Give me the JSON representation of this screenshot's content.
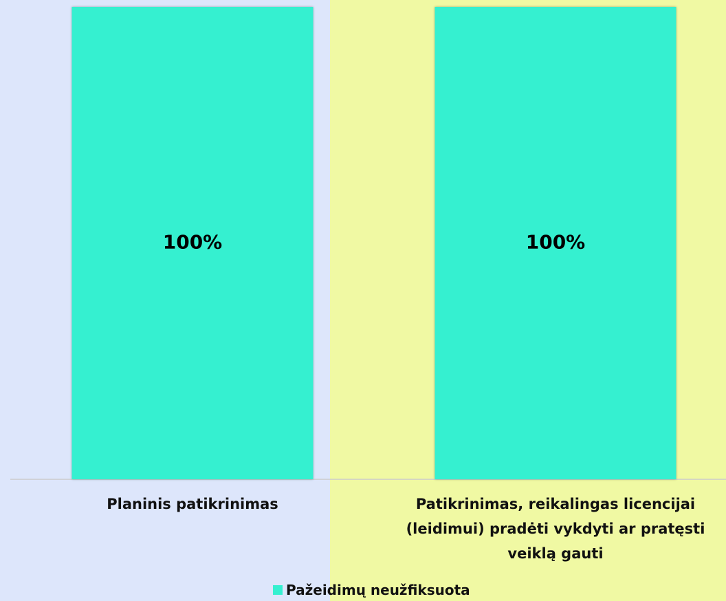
{
  "chart_data": {
    "type": "bar",
    "categories": [
      "Planinis patikrinimas",
      "Patikrinimas, reikalingas licencijai (leidimui) pradėti vykdyti ar pratęsti veiklą gauti"
    ],
    "series": [
      {
        "name": "Pažeidimų neužfiksuota",
        "color": "#35f0d0",
        "values": [
          100,
          100
        ],
        "value_labels": [
          "100%",
          "100%"
        ]
      }
    ],
    "ylim": [
      0,
      100
    ]
  }
}
